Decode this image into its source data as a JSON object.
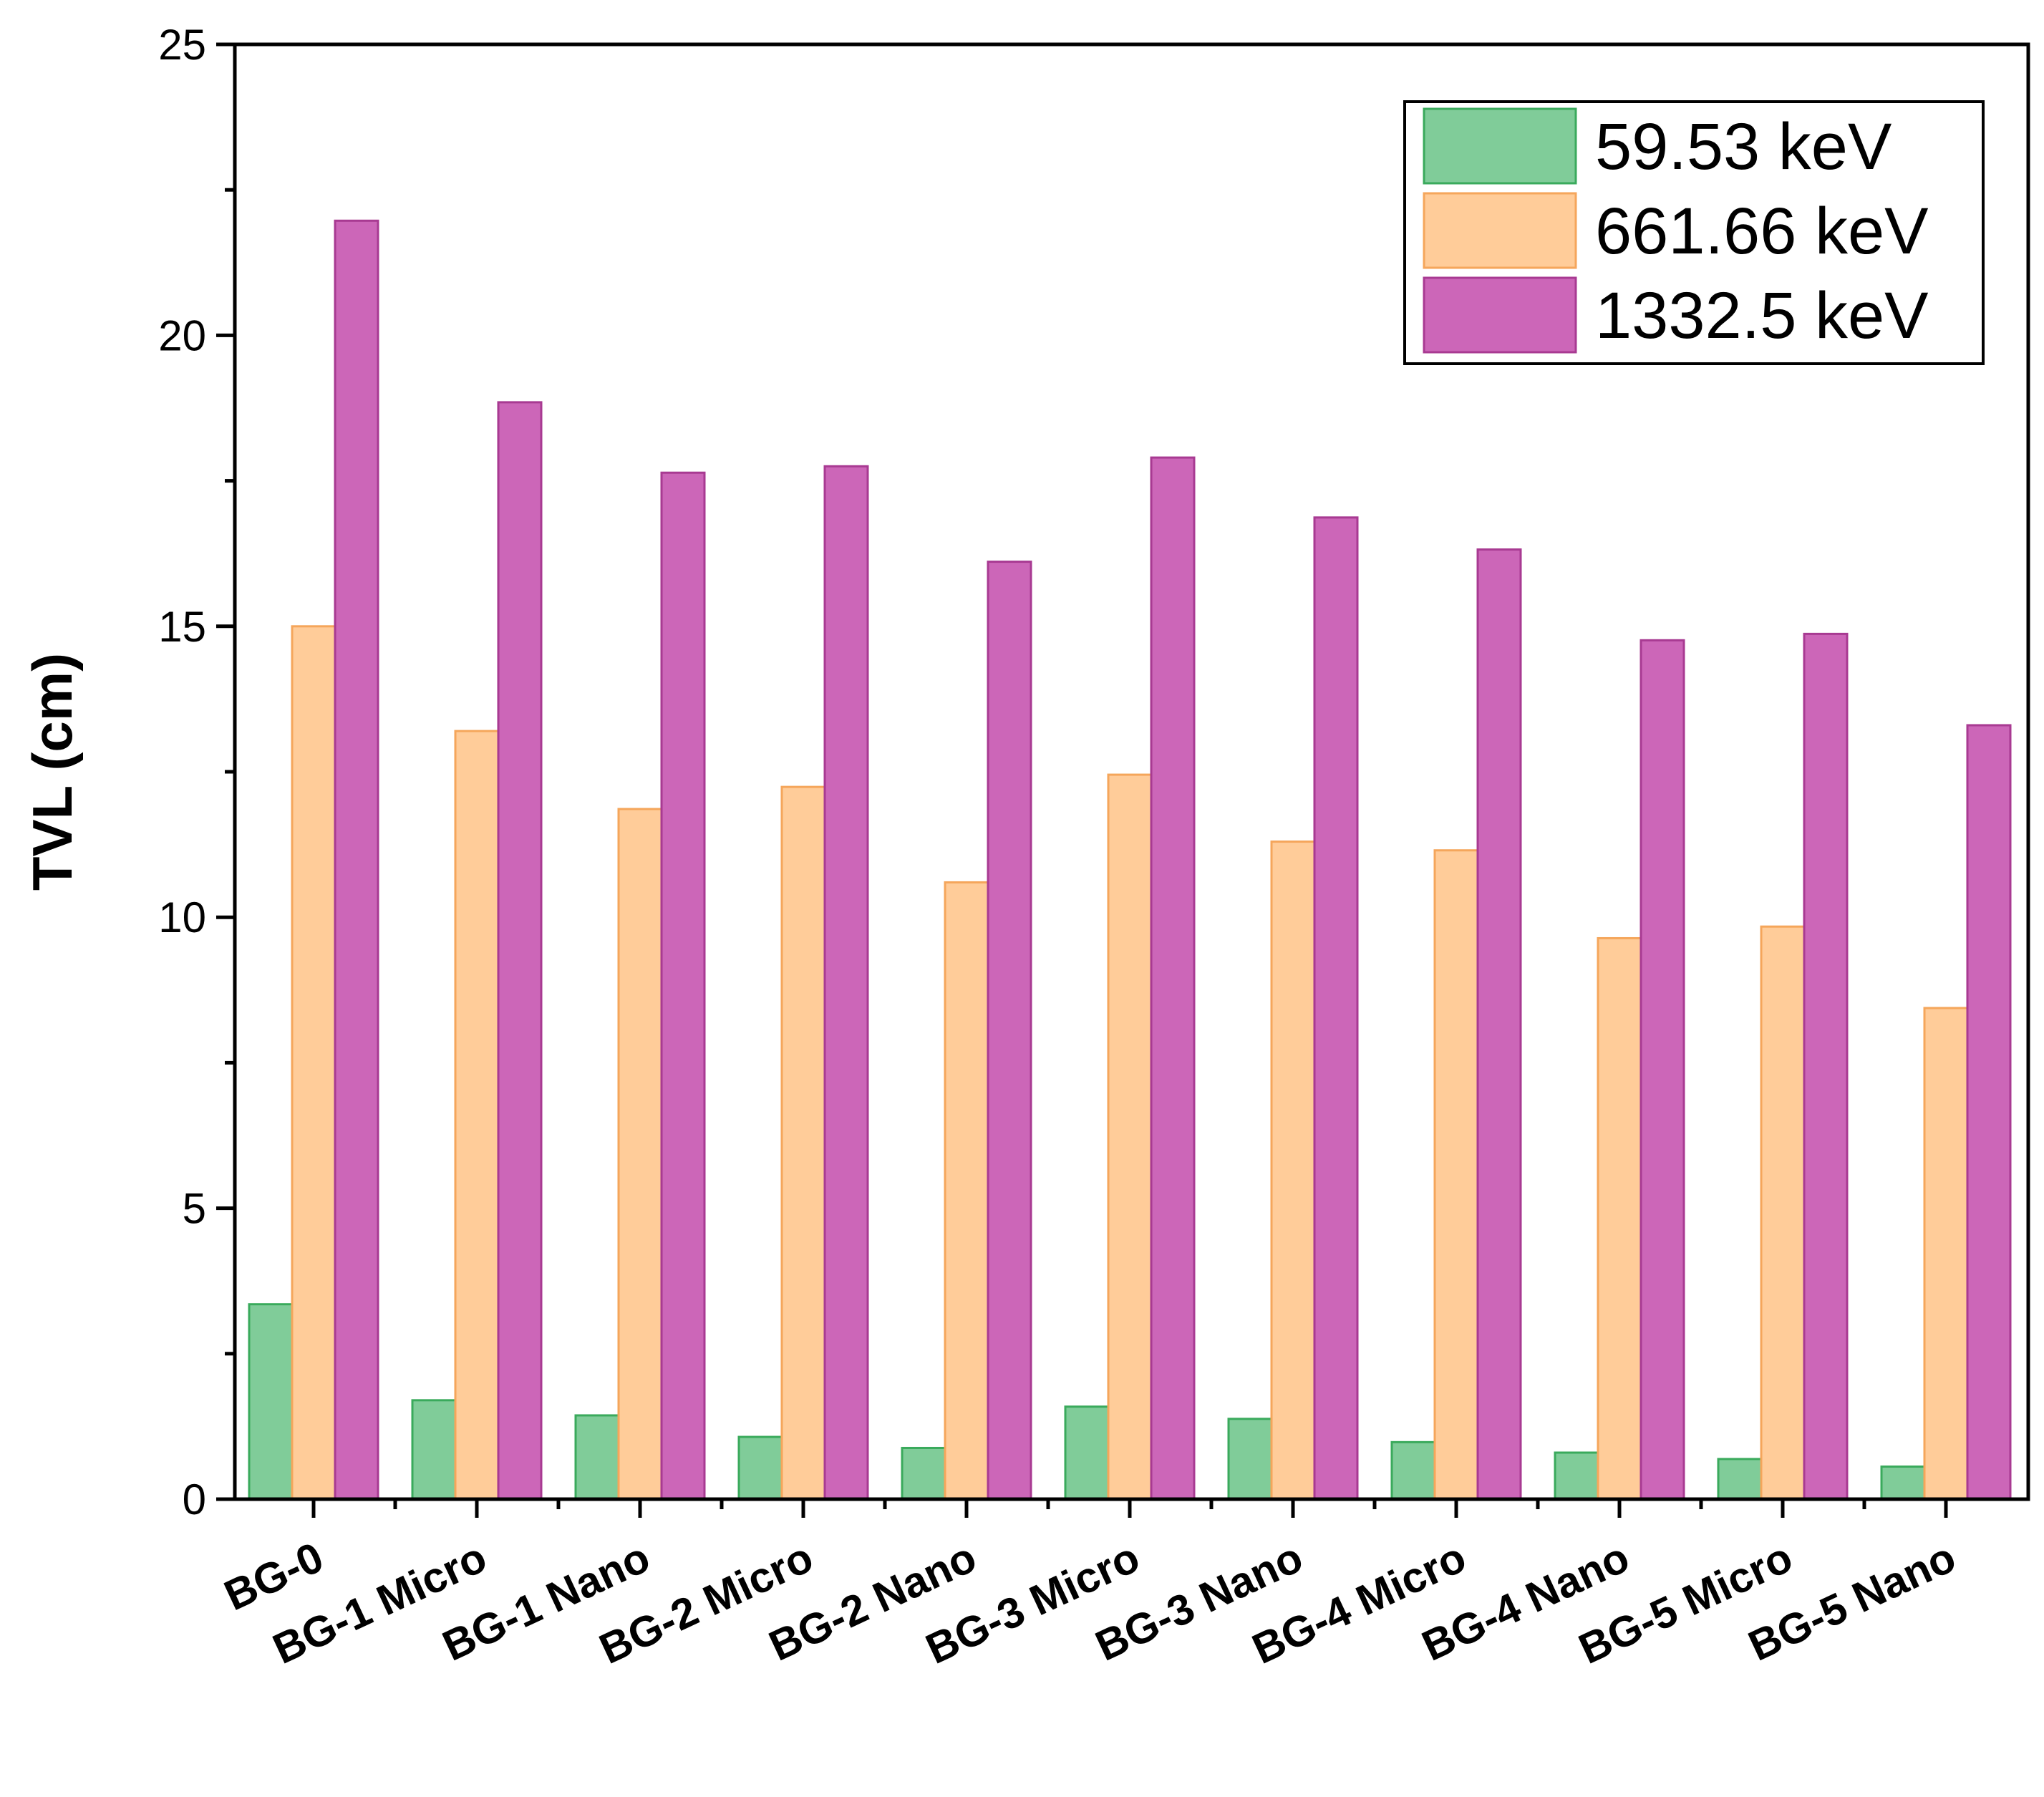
{
  "chart_data": {
    "type": "bar",
    "title": "",
    "xlabel": "",
    "ylabel": "TVL (cm)",
    "ylim": [
      0,
      25
    ],
    "yticks": [
      0,
      5,
      10,
      15,
      20,
      25
    ],
    "legend_position": "top-right",
    "categories": [
      "BG-0",
      "BG-1 Micro",
      "BG-1 Nano",
      "BG-2 Micro",
      "BG-2 Nano",
      "BG-3 Micro",
      "BG-3 Nano",
      "BG-4 Micro",
      "BG-4 Nano",
      "BG-5 Micro",
      "BG-5 Nano"
    ],
    "series": [
      {
        "name": "59.53 keV",
        "color": "#80CC99",
        "stroke": "#3AAA5C",
        "values": [
          3.35,
          1.7,
          1.44,
          1.07,
          0.88,
          1.59,
          1.38,
          0.98,
          0.8,
          0.69,
          0.56
        ]
      },
      {
        "name": "661.66 keV",
        "color": "#FFCC99",
        "stroke": "#F5A65B",
        "values": [
          15.0,
          13.2,
          11.86,
          12.24,
          10.6,
          12.45,
          11.3,
          11.15,
          9.64,
          9.84,
          8.44
        ]
      },
      {
        "name": "1332.5 keV",
        "color": "#CC66B8",
        "stroke": "#A83A92",
        "values": [
          21.97,
          18.85,
          17.64,
          17.75,
          16.11,
          17.9,
          16.87,
          16.32,
          14.76,
          14.87,
          13.3
        ]
      }
    ]
  }
}
